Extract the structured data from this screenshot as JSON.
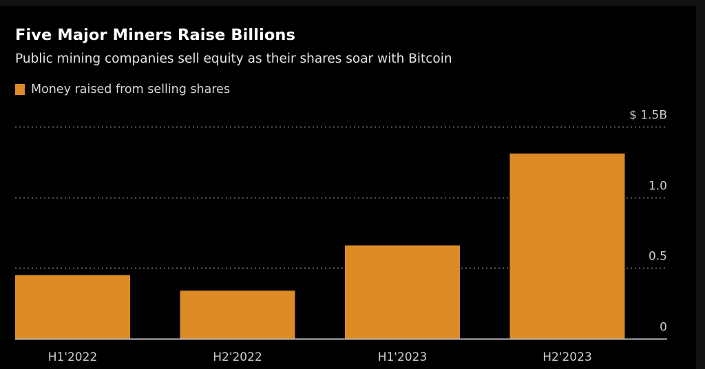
{
  "chart_data": {
    "type": "bar",
    "title": "Five Major Miners Raise Billions",
    "subtitle": "Public mining companies sell equity as their shares soar with Bitcoin",
    "legend": {
      "position": "top-left",
      "entries": [
        {
          "label": "Money raised from selling shares",
          "color": "#dc8b26"
        }
      ]
    },
    "categories": [
      "H1'2022",
      "H2'2022",
      "H1'2023",
      "H2'2023"
    ],
    "series": [
      {
        "name": "Money raised from selling shares",
        "values": [
          0.45,
          0.34,
          0.66,
          1.31
        ],
        "color": "#dc8b26"
      }
    ],
    "xlabel": "",
    "ylabel": "",
    "unit": "$ billions",
    "ylim": [
      0,
      1.5
    ],
    "yticks": [
      {
        "value": 0,
        "label": "0"
      },
      {
        "value": 0.5,
        "label": "0.5"
      },
      {
        "value": 1.0,
        "label": "1.0"
      },
      {
        "value": 1.5,
        "label": "$ 1.5B"
      }
    ],
    "y_axis_side": "right",
    "grid": true,
    "grid_style": "dotted"
  },
  "colors": {
    "background": "#000000",
    "bar": "#dc8b26",
    "grid": "#8a8a8a",
    "baseline": "#bdbdbd",
    "text": "#cfcfcf"
  }
}
